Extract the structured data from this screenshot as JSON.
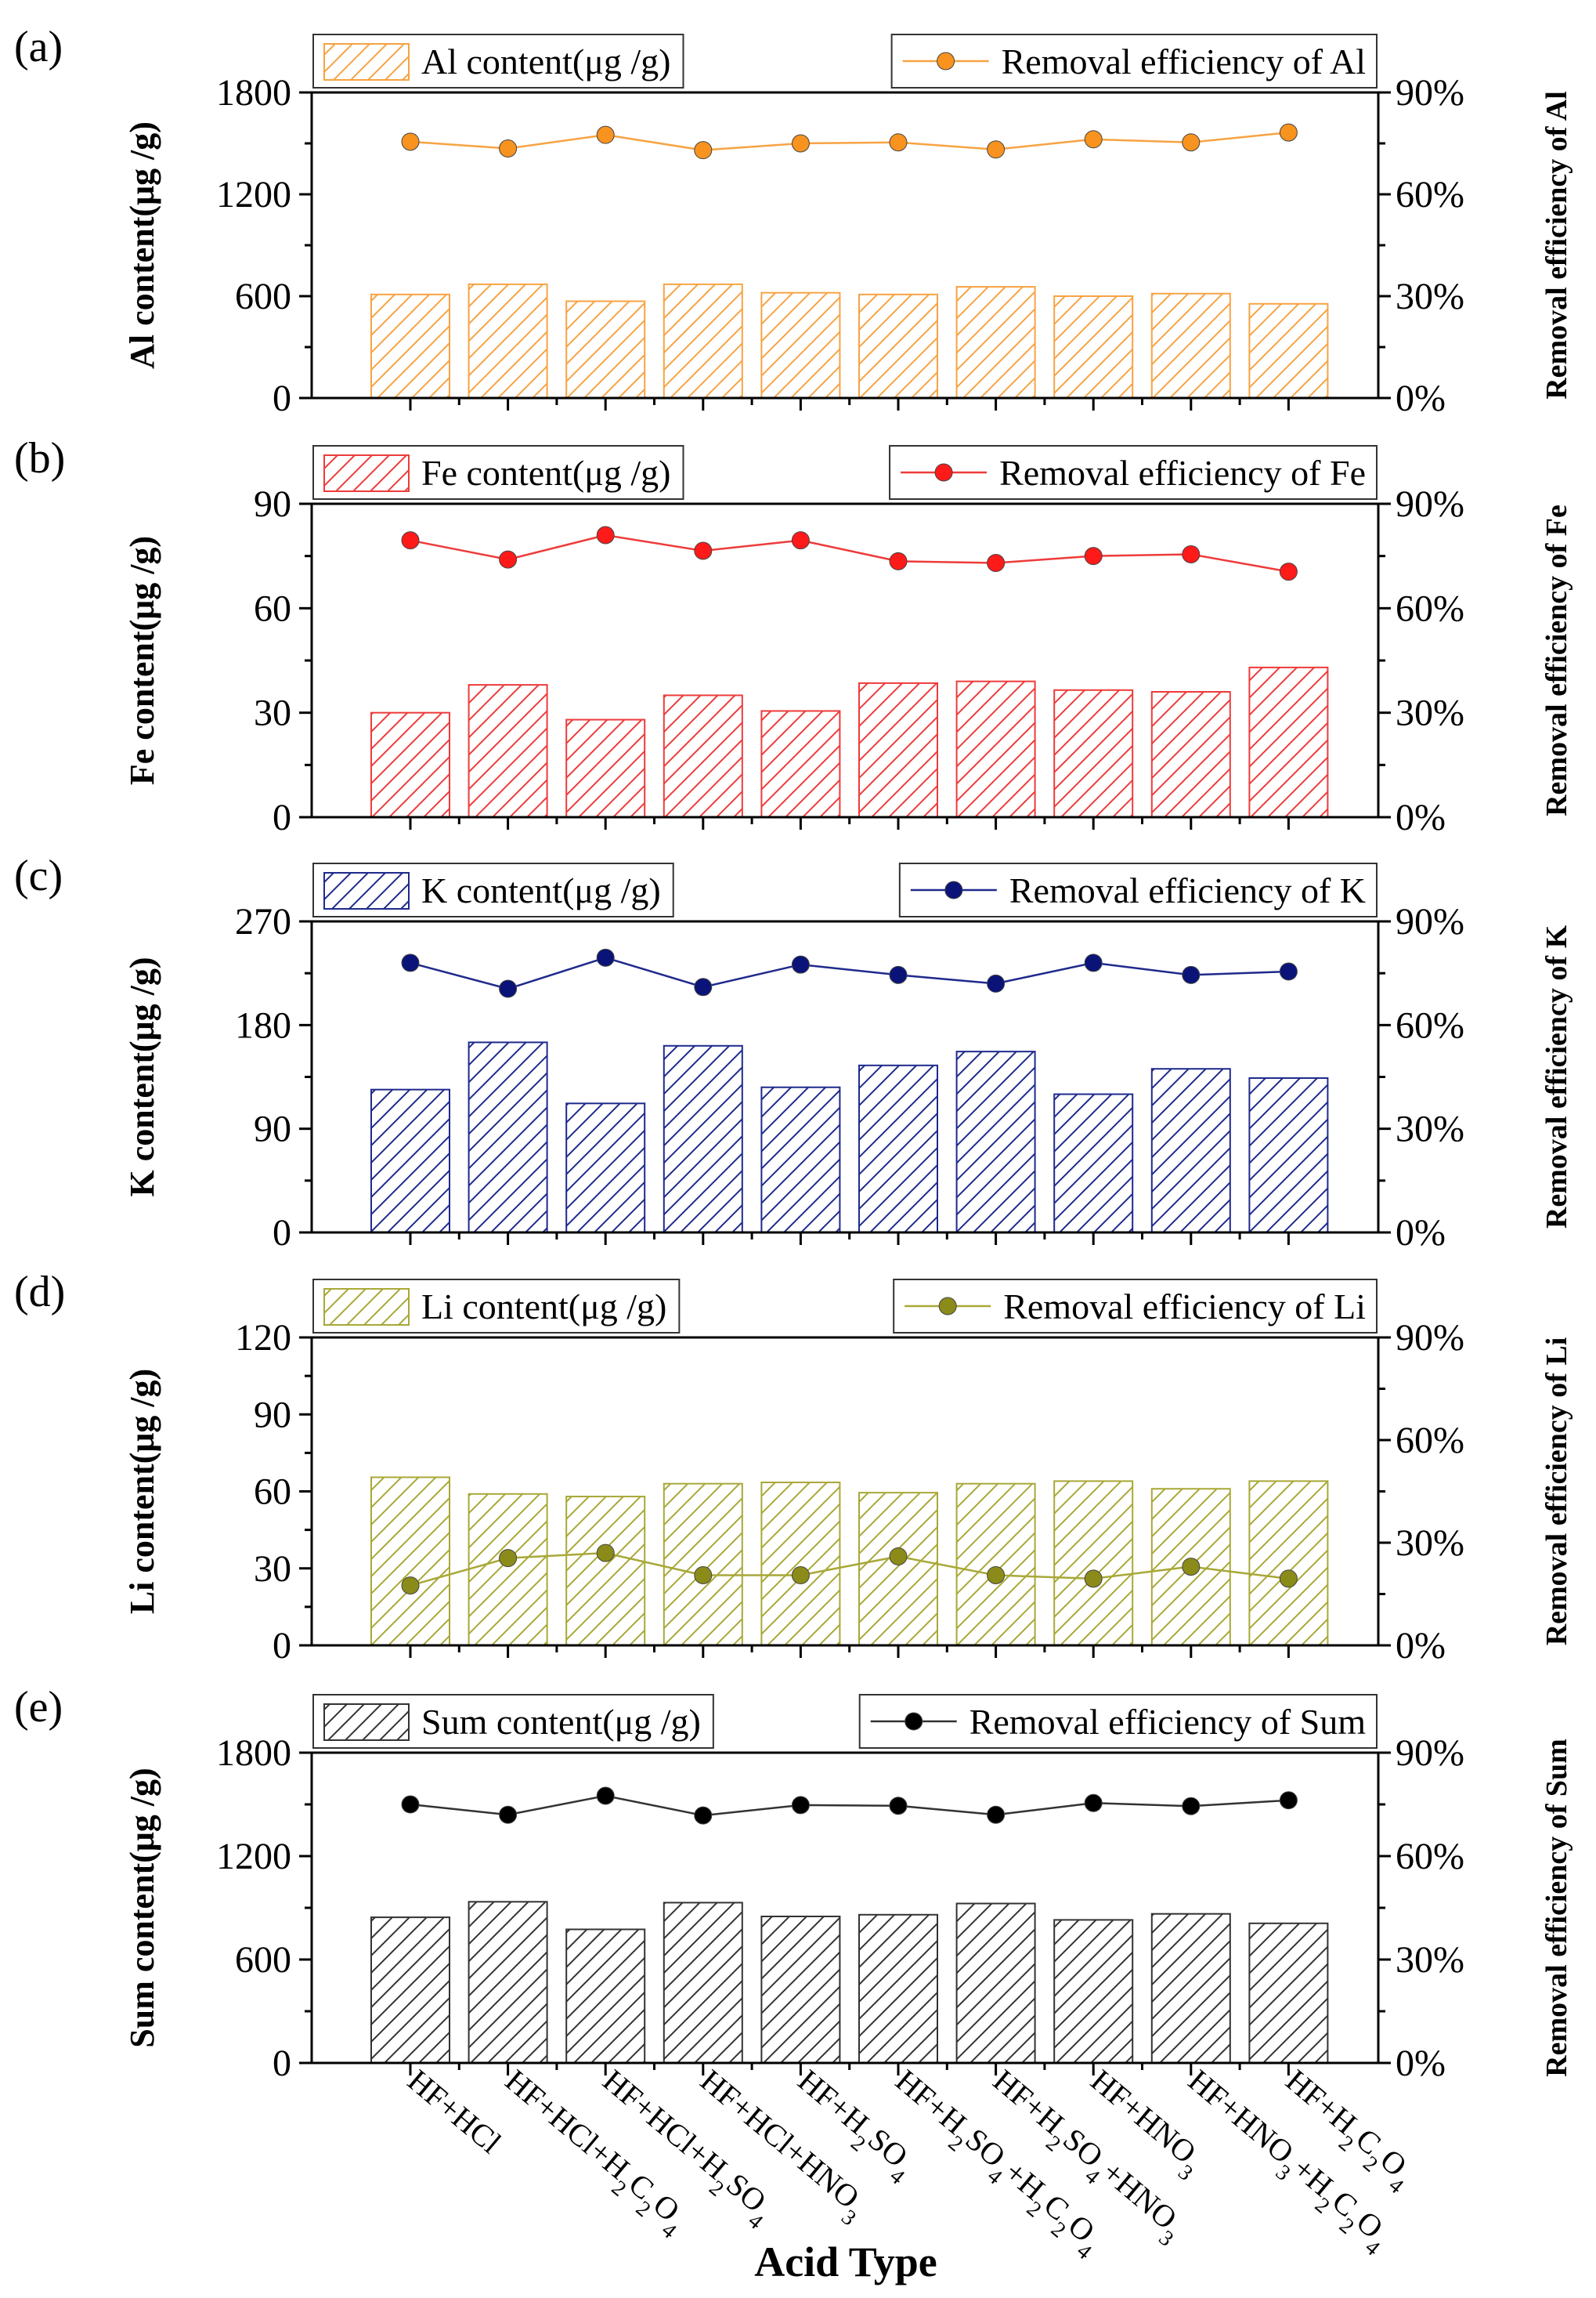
{
  "figure": {
    "xlabel": "Acid Type",
    "right_ticks": [
      "0%",
      "30%",
      "60%",
      "90%"
    ]
  },
  "chart_data": [
    {
      "type": "bar",
      "panel_label": "(a)",
      "element": "Al",
      "color": "#f7a343",
      "dot_color": "#f7931e",
      "bar_legend": "Al content(μg /g)",
      "line_legend": "Removal efficiency of Al",
      "ylabel": "Al content(μg /g)",
      "y2label": "Removal efficiency of Al",
      "ylim": [
        0,
        1800
      ],
      "yticks": [
        "0",
        "600",
        "1200",
        "1800"
      ],
      "y2lim": [
        0,
        90
      ],
      "categories": [
        "HF+HCl",
        "HF+HCl+H2C2O4",
        "HF+HCl+H2SO4",
        "HF+HCl+HNO3",
        "HF+H2SO4",
        "HF+H2SO4+H2C2O4",
        "HF+H2SO4+HNO3",
        "HF+HNO3",
        "HF+HNO3+H2C2O4",
        "HF+H2C2O4"
      ],
      "series": [
        {
          "name": "Al content(μg /g)",
          "kind": "bar",
          "values": [
            610,
            670,
            570,
            670,
            620,
            610,
            655,
            600,
            615,
            555
          ]
        },
        {
          "name": "Removal efficiency of Al",
          "kind": "line",
          "unit": "%",
          "values": [
            75.5,
            73.5,
            77.5,
            73.0,
            75.0,
            75.3,
            73.2,
            76.2,
            75.3,
            78.2
          ]
        }
      ]
    },
    {
      "type": "bar",
      "panel_label": "(b)",
      "element": "Fe",
      "color": "#ee3b3b",
      "dot_color": "#ff1a1a",
      "bar_legend": "Fe content(μg /g)",
      "line_legend": "Removal efficiency of Fe",
      "ylabel": "Fe content(μg /g)",
      "y2label": "Removal efficiency of Fe",
      "ylim": [
        0,
        90
      ],
      "yticks": [
        "0",
        "30",
        "60",
        "90"
      ],
      "y2lim": [
        0,
        90
      ],
      "categories": [
        "HF+HCl",
        "HF+HCl+H2C2O4",
        "HF+HCl+H2SO4",
        "HF+HCl+HNO3",
        "HF+H2SO4",
        "HF+H2SO4+H2C2O4",
        "HF+H2SO4+HNO3",
        "HF+HNO3",
        "HF+HNO3+H2C2O4",
        "HF+H2C2O4"
      ],
      "series": [
        {
          "name": "Fe content(μg /g)",
          "kind": "bar",
          "values": [
            30,
            38,
            28,
            35,
            30.5,
            38.5,
            39,
            36.5,
            36,
            43
          ]
        },
        {
          "name": "Removal efficiency of Fe",
          "kind": "line",
          "unit": "%",
          "values": [
            79.5,
            74,
            81,
            76.5,
            79.5,
            73.5,
            73,
            75,
            75.5,
            70.5
          ]
        }
      ]
    },
    {
      "type": "bar",
      "panel_label": "(c)",
      "element": "K",
      "color": "#1f2a8c",
      "dot_color": "#0a1478",
      "bar_legend": "K content(μg /g)",
      "line_legend": "Removal efficiency of K",
      "ylabel": "K content(μg /g)",
      "y2label": "Removal efficiency of K",
      "ylim": [
        0,
        270
      ],
      "yticks": [
        "0",
        "90",
        "180",
        "270"
      ],
      "y2lim": [
        0,
        90
      ],
      "categories": [
        "HF+HCl",
        "HF+HCl+H2C2O4",
        "HF+HCl+H2SO4",
        "HF+HCl+HNO3",
        "HF+H2SO4",
        "HF+H2SO4+H2C2O4",
        "HF+H2SO4+HNO3",
        "HF+HNO3",
        "HF+HNO3+H2C2O4",
        "HF+H2C2O4"
      ],
      "series": [
        {
          "name": "K content(μg /g)",
          "kind": "bar",
          "values": [
            124,
            165,
            112,
            162,
            126,
            145,
            157,
            120,
            142,
            134
          ]
        },
        {
          "name": "Removal efficiency of K",
          "kind": "line",
          "unit": "%",
          "values": [
            78,
            70.5,
            79.5,
            71,
            77.5,
            74.5,
            72,
            78,
            74.5,
            75.5
          ]
        }
      ]
    },
    {
      "type": "bar",
      "panel_label": "(d)",
      "element": "Li",
      "color": "#a8a838",
      "dot_color": "#8b8b1a",
      "bar_legend": "Li content(μg /g)",
      "line_legend": "Removal efficiency of Li",
      "ylabel": "Li content(μg /g)",
      "y2label": "Removal efficiency of Li",
      "ylim": [
        0,
        120
      ],
      "yticks": [
        "0",
        "30",
        "60",
        "90",
        "120"
      ],
      "y2lim": [
        0,
        90
      ],
      "categories": [
        "HF+HCl",
        "HF+HCl+H2C2O4",
        "HF+HCl+H2SO4",
        "HF+HCl+HNO3",
        "HF+H2SO4",
        "HF+H2SO4+H2C2O4",
        "HF+H2SO4+HNO3",
        "HF+HNO3",
        "HF+HNO3+H2C2O4",
        "HF+H2C2O4"
      ],
      "series": [
        {
          "name": "Li content(μg /g)",
          "kind": "bar",
          "values": [
            65.5,
            59,
            58,
            63,
            63.5,
            59.5,
            63,
            64,
            61,
            64
          ]
        },
        {
          "name": "Removal efficiency of Li",
          "kind": "line",
          "unit": "%",
          "values": [
            17.5,
            25.5,
            27,
            20.5,
            20.5,
            26,
            20.5,
            19.5,
            23,
            19.5
          ]
        }
      ]
    },
    {
      "type": "bar",
      "panel_label": "(e)",
      "element": "Sum",
      "color": "#333333",
      "dot_color": "#000000",
      "bar_legend": "Sum content(μg /g)",
      "line_legend": "Removal efficiency of Sum",
      "ylabel": "Sum content(μg /g)",
      "y2label": "Removal efficiency of Sum",
      "ylim": [
        0,
        1800
      ],
      "yticks": [
        "0",
        "600",
        "1200",
        "1800"
      ],
      "y2lim": [
        0,
        90
      ],
      "categories": [
        "HF+HCl",
        "HF+HCl+H2C2O4",
        "HF+HCl+H2SO4",
        "HF+HCl+HNO3",
        "HF+H2SO4",
        "HF+H2SO4+H2C2O4",
        "HF+H2SO4+HNO3",
        "HF+HNO3",
        "HF+HNO3+H2C2O4",
        "HF+H2C2O4"
      ],
      "series": [
        {
          "name": "Sum content(μg /g)",
          "kind": "bar",
          "values": [
            845,
            935,
            775,
            930,
            850,
            860,
            925,
            830,
            865,
            810
          ]
        },
        {
          "name": "Removal efficiency of Sum",
          "kind": "line",
          "unit": "%",
          "values": [
            75,
            72,
            77.5,
            71.8,
            74.8,
            74.6,
            72,
            75.4,
            74.5,
            76.2
          ]
        }
      ]
    }
  ]
}
